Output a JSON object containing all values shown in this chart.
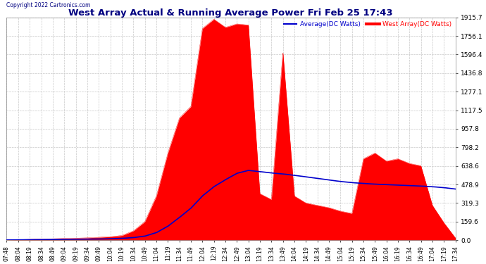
{
  "title": "West Array Actual & Running Average Power Fri Feb 25 17:43",
  "copyright": "Copyright 2022 Cartronics.com",
  "legend_avg": "Average(DC Watts)",
  "legend_west": "West Array(DC Watts)",
  "bg_color": "#ffffff",
  "plot_bg_color": "#ffffff",
  "grid_color": "#c8c8c8",
  "fill_color": "#ff0000",
  "avg_line_color": "#0000cc",
  "ylim_max": 1915.7,
  "yticks": [
    0.0,
    159.6,
    319.3,
    478.9,
    638.6,
    798.2,
    957.8,
    1117.5,
    1277.1,
    1436.8,
    1596.4,
    1756.1,
    1915.7
  ],
  "xtick_labels": [
    "07:48",
    "08:04",
    "08:19",
    "08:34",
    "08:49",
    "09:04",
    "09:19",
    "09:34",
    "09:49",
    "10:04",
    "10:19",
    "10:34",
    "10:49",
    "11:04",
    "11:19",
    "11:34",
    "11:49",
    "12:04",
    "12:19",
    "12:34",
    "12:49",
    "13:04",
    "13:19",
    "13:34",
    "13:49",
    "14:04",
    "14:19",
    "14:34",
    "14:49",
    "15:04",
    "15:19",
    "15:34",
    "15:49",
    "16:04",
    "16:19",
    "16:34",
    "16:49",
    "17:04",
    "17:19",
    "17:34"
  ],
  "west_values": [
    2,
    5,
    8,
    10,
    12,
    15,
    18,
    20,
    25,
    30,
    40,
    80,
    160,
    380,
    750,
    1050,
    1150,
    1820,
    1900,
    1830,
    1860,
    1850,
    400,
    350,
    1620,
    380,
    320,
    300,
    280,
    250,
    230,
    700,
    750,
    680,
    700,
    660,
    640,
    300,
    150,
    20
  ],
  "avg_values": [
    2,
    3,
    4,
    5,
    6,
    7,
    8,
    9,
    10,
    12,
    16,
    22,
    35,
    65,
    120,
    195,
    275,
    380,
    460,
    520,
    575,
    600,
    590,
    578,
    570,
    558,
    545,
    532,
    518,
    505,
    495,
    488,
    482,
    478,
    474,
    470,
    466,
    460,
    452,
    440
  ]
}
